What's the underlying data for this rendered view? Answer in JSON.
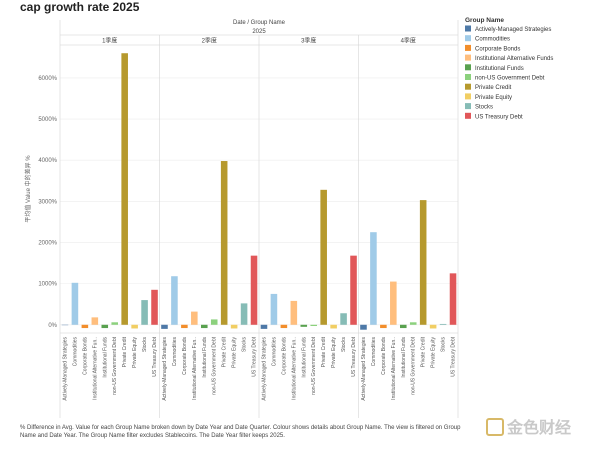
{
  "page": {
    "title": "cap growth rate 2025"
  },
  "chart_data": {
    "type": "bar",
    "title": "cap growth rate 2025",
    "header_title": "Date / Group Name",
    "header_year": "2025",
    "ylabel": "平均值 Value 中的差异 %",
    "ylim": [
      -200,
      6800
    ],
    "yticks": [
      0,
      1000,
      2000,
      3000,
      4000,
      5000,
      6000
    ],
    "ytick_labels": [
      "0%",
      "1000%",
      "2000%",
      "3000%",
      "4000%",
      "5000%",
      "6000%"
    ],
    "quarters": [
      "1季度",
      "2季度",
      "3季度",
      "4季度"
    ],
    "categories": [
      "Actively-Managed Strategies",
      "Commodities",
      "Corporate Bonds",
      "Institutional Alternative Fun..",
      "Institutional Funds",
      "non-US Government Debt",
      "Private Credit",
      "Private Equity",
      "Stocks",
      "US Treasury Debt"
    ],
    "colors": [
      "#4e79a7",
      "#a0cbe8",
      "#f28e2b",
      "#ffbe7d",
      "#59a14f",
      "#8cd17d",
      "#b6992d",
      "#f1ce63",
      "#86bcb6",
      "#e15759"
    ],
    "series": [
      {
        "name": "1季度",
        "values": [
          0,
          1020,
          -80,
          180,
          -80,
          60,
          6600,
          -90,
          600,
          850
        ]
      },
      {
        "name": "2季度",
        "values": [
          -100,
          1180,
          -80,
          320,
          -80,
          130,
          3980,
          -90,
          520,
          1680
        ]
      },
      {
        "name": "3季度",
        "values": [
          -100,
          750,
          -80,
          580,
          -50,
          -30,
          3280,
          -90,
          280,
          1680
        ]
      },
      {
        "name": "4季度",
        "values": [
          -120,
          2250,
          -80,
          1050,
          -80,
          60,
          3030,
          -90,
          20,
          1250
        ]
      }
    ],
    "legend": {
      "title": "Group Name",
      "placement": "right",
      "entries": [
        "Actively-Managed Strategies",
        "Commodities",
        "Corporate Bonds",
        "Institutional Alternative Funds",
        "Institutional Funds",
        "non-US Government Debt",
        "Private Credit",
        "Private Equity",
        "Stocks",
        "US Treasury Debt"
      ]
    }
  },
  "footnote": "% Difference in Avg. Value for each Group Name broken down by Date Year and Date Quarter. Colour shows details about Group Name. The view is filtered on Group Name and Date Year. The Group Name filter excludes Stablecoins. The Date Year filter keeps 2025.",
  "watermark": {
    "text": "金色财经"
  }
}
